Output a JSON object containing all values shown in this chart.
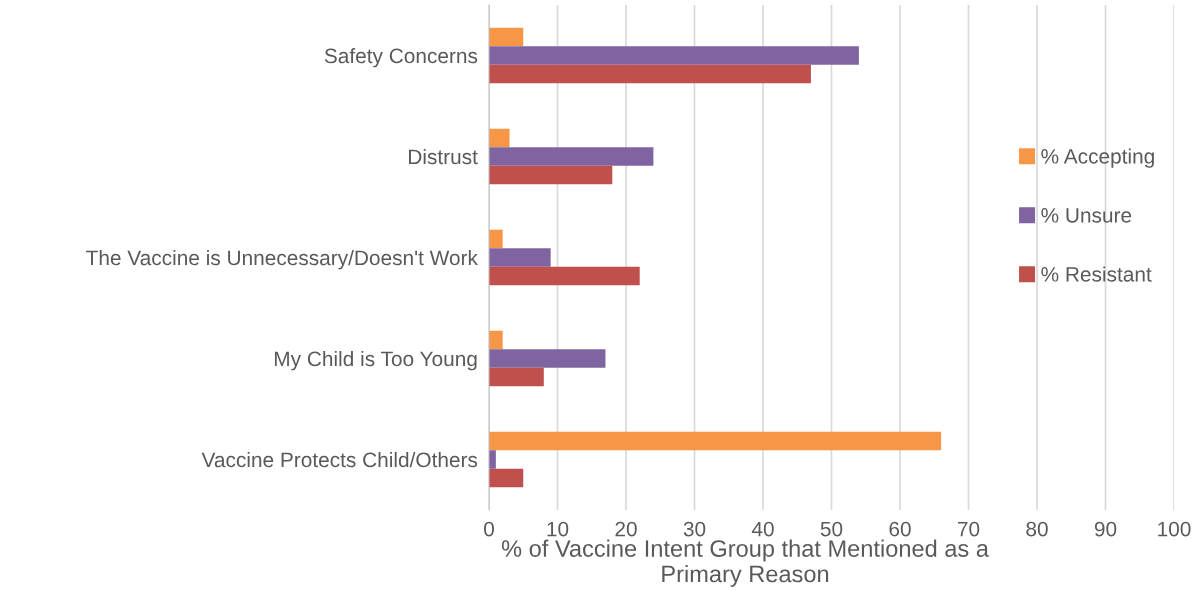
{
  "chart_data": {
    "type": "bar",
    "orientation": "horizontal",
    "xlabel": "% of Vaccine Intent Group that Mentioned as a Primary Reason",
    "categories": [
      "Safety Concerns",
      "Distrust",
      "The Vaccine is Unnecessary/Doesn't Work",
      "My Child is Too Young",
      "Vaccine Protects Child/Others"
    ],
    "series": [
      {
        "name": "% Accepting",
        "color": "#f79646",
        "values": [
          5,
          3,
          2,
          2,
          66
        ]
      },
      {
        "name": "% Unsure",
        "color": "#8064a2",
        "values": [
          54,
          24,
          9,
          17,
          1
        ]
      },
      {
        "name": "% Resistant",
        "color": "#c0504d",
        "values": [
          47,
          18,
          22,
          8,
          5
        ]
      }
    ],
    "xlim": [
      0,
      100
    ],
    "xticks": [
      0,
      10,
      20,
      30,
      40,
      50,
      60,
      70,
      80,
      90,
      100
    ],
    "grid": "x",
    "legend": "right"
  }
}
